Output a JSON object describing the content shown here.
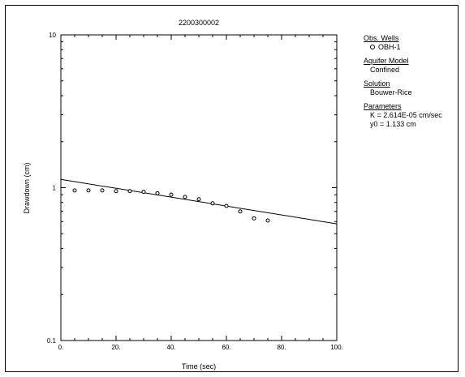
{
  "chart_data": {
    "type": "scatter",
    "title": "2200300002",
    "xlabel": "Time (sec)",
    "ylabel": "Drawdown (cm)",
    "xlim": [
      0,
      100
    ],
    "ylim": [
      0.1,
      10
    ],
    "yscale": "log",
    "x_ticks": [
      "0.",
      "20.",
      "40.",
      "60.",
      "80.",
      "100."
    ],
    "y_ticks": [
      "0.1",
      "1",
      "10"
    ],
    "grid": false,
    "series": [
      {
        "name": "OBH-1",
        "marker": "open-circle",
        "x": [
          5,
          10,
          15,
          20,
          25,
          30,
          35,
          40,
          45,
          50,
          55,
          60,
          65,
          70,
          75
        ],
        "y": [
          0.96,
          0.96,
          0.96,
          0.95,
          0.95,
          0.94,
          0.92,
          0.9,
          0.87,
          0.84,
          0.79,
          0.76,
          0.7,
          0.63,
          0.61
        ]
      }
    ],
    "fit_line": {
      "x": [
        0,
        100
      ],
      "y": [
        1.133,
        0.58
      ]
    },
    "legend_position": "right"
  },
  "legend": {
    "obs_wells_heading": "Obs. Wells",
    "obs_wells_item": "OBH-1",
    "aquifer_model_heading": "Aquifer Model",
    "aquifer_model_value": "Confined",
    "solution_heading": "Solution",
    "solution_value": "Bouwer-Rice",
    "parameters_heading": "Parameters",
    "param_k": "K  = 2.614E-05 cm/sec",
    "param_y0": "y0 = 1.133 cm"
  }
}
